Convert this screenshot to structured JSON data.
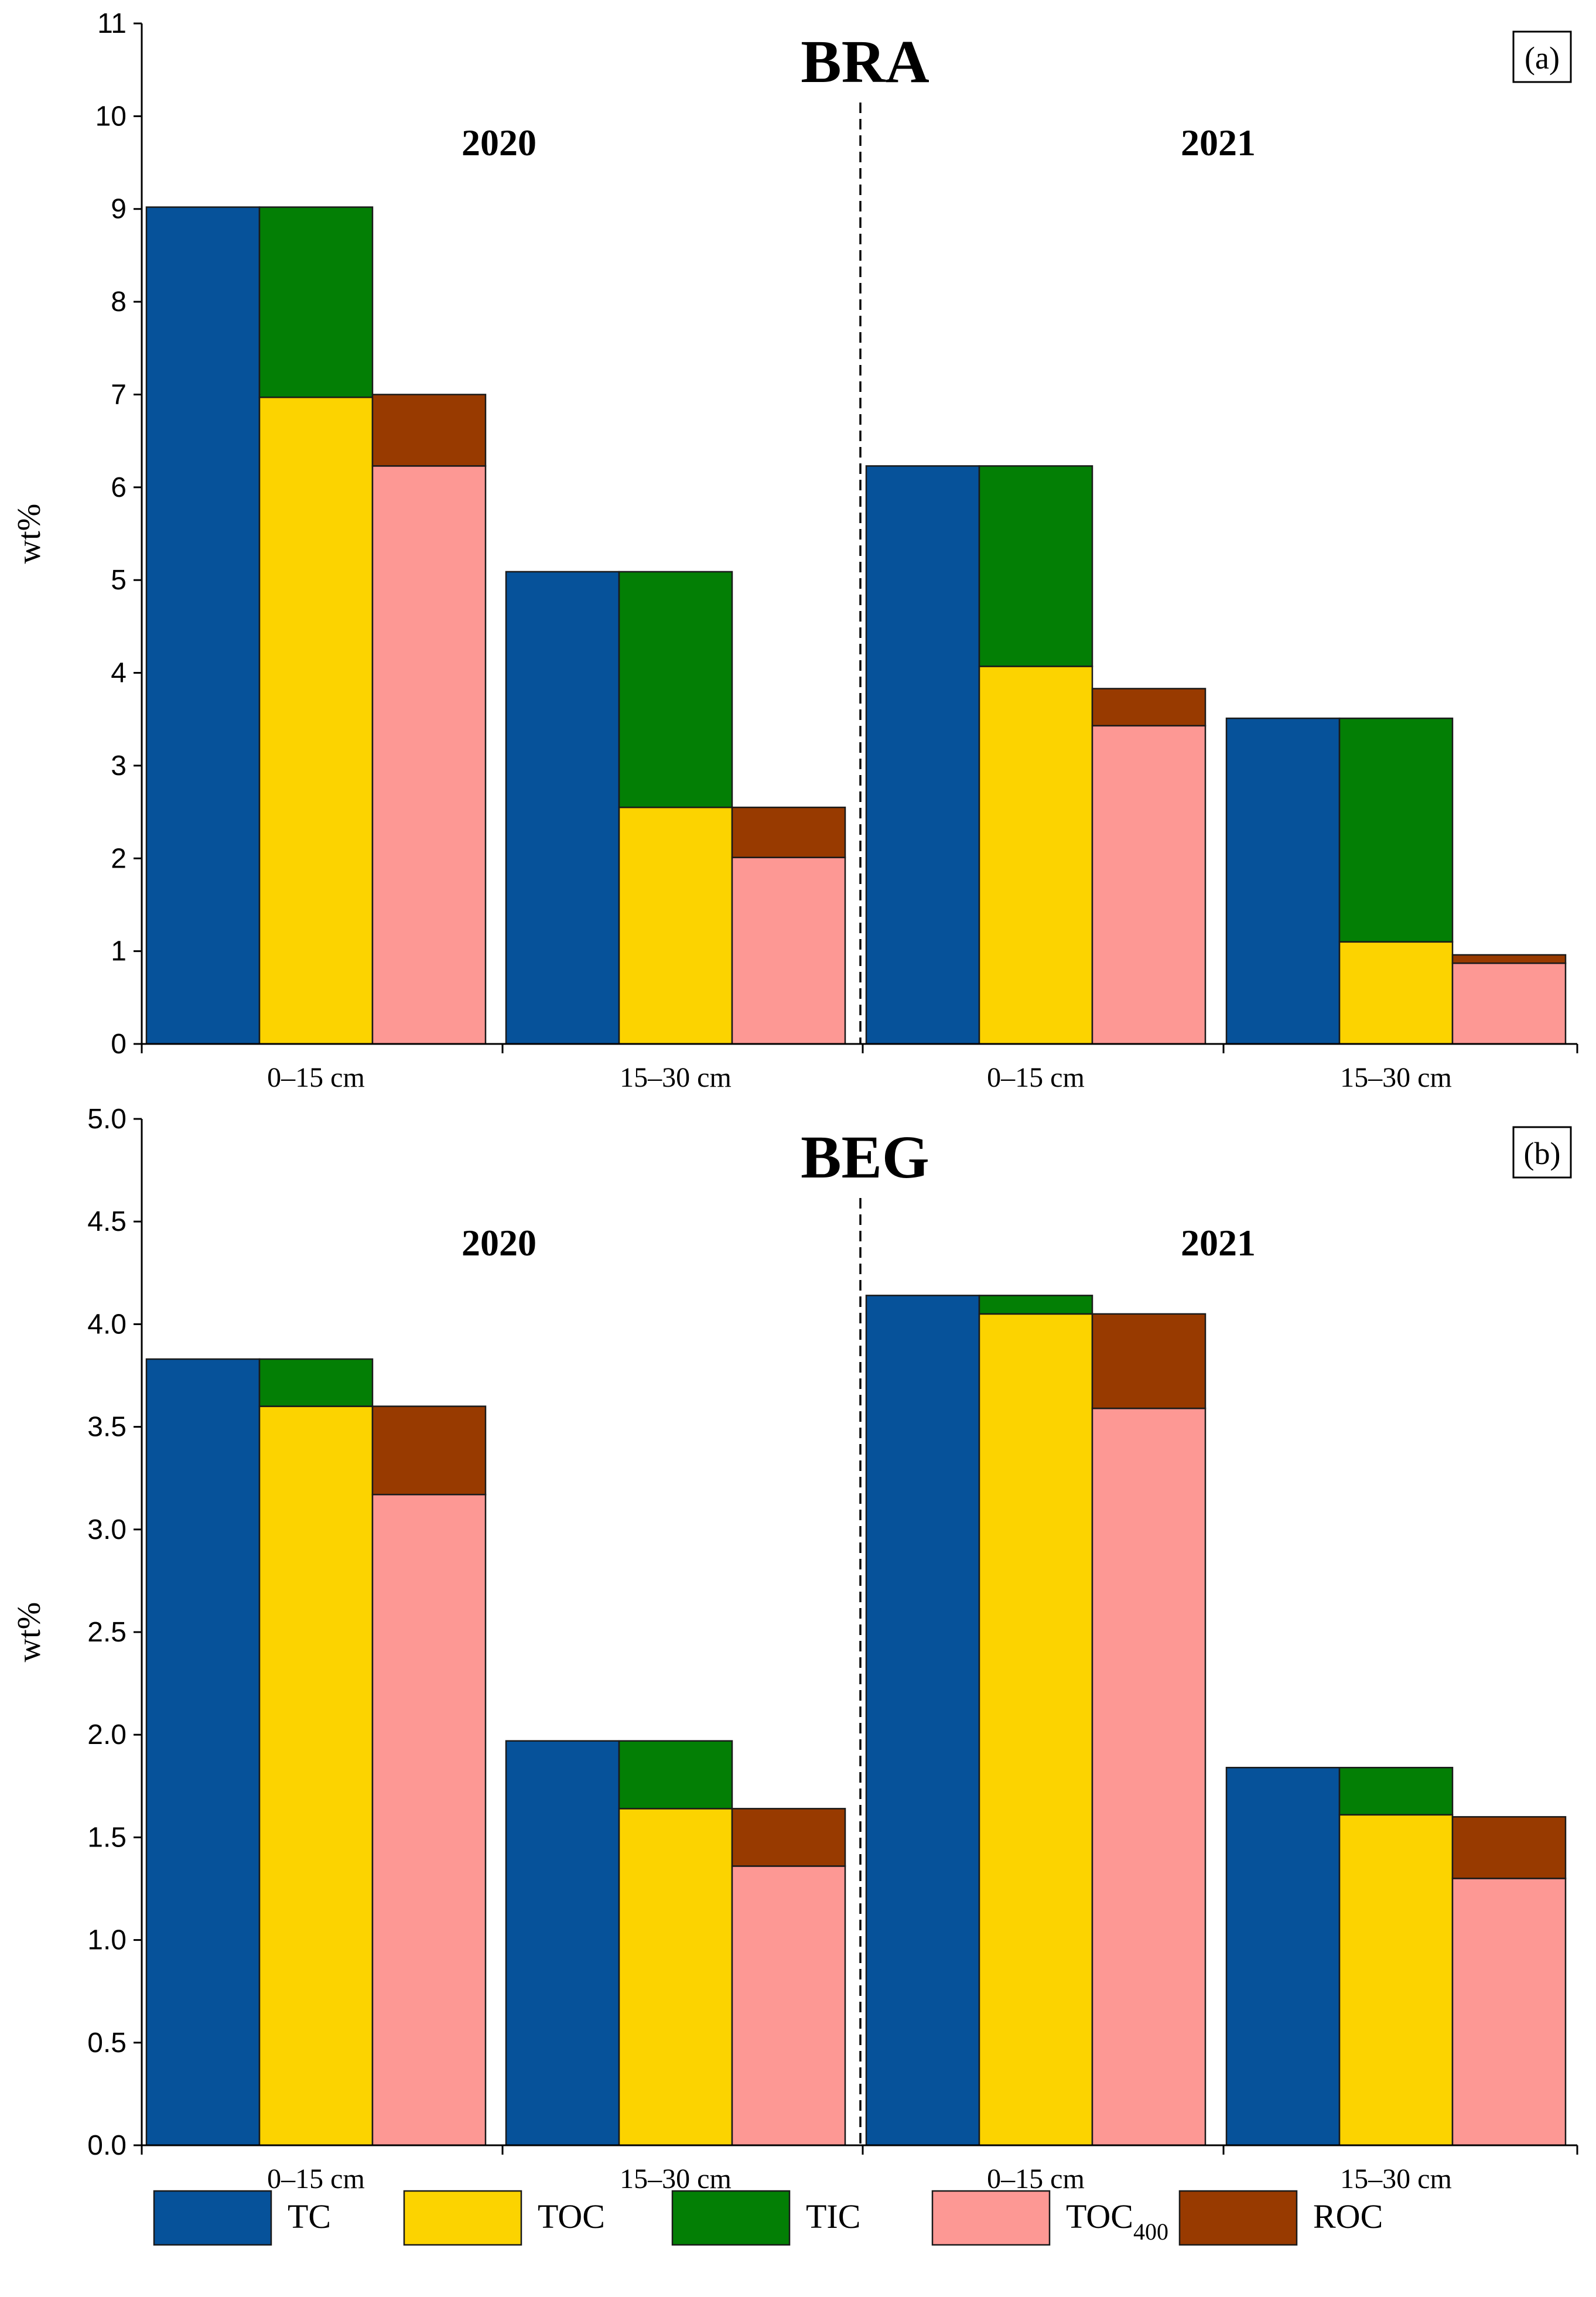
{
  "chart_data": [
    {
      "type": "bar",
      "panel_tag": "(a)",
      "title": "BRA",
      "ylabel": "wt%",
      "ylim": [
        0,
        11
      ],
      "yticks": [
        "0",
        "1",
        "2",
        "3",
        "4",
        "5",
        "6",
        "7",
        "8",
        "9",
        "10",
        "11"
      ],
      "tick_values": [
        0,
        1,
        2,
        3,
        4,
        5,
        6,
        7,
        8,
        9,
        10,
        11
      ],
      "years": [
        "2020",
        "2021"
      ],
      "categories": [
        "0–15 cm",
        "15–30 cm",
        "0–15 cm",
        "15–30 cm"
      ],
      "groups": [
        {
          "year": "2020",
          "depth": "0–15 cm",
          "TC": 9.02,
          "TOC": 6.97,
          "TIC": 2.05,
          "TOC400": 6.23,
          "ROC": 0.77
        },
        {
          "year": "2020",
          "depth": "15–30 cm",
          "TC": 5.09,
          "TOC": 2.55,
          "TIC": 2.54,
          "TOC400": 2.01,
          "ROC": 0.54
        },
        {
          "year": "2021",
          "depth": "0–15 cm",
          "TC": 6.23,
          "TOC": 4.07,
          "TIC": 2.16,
          "TOC400": 3.43,
          "ROC": 0.4
        },
        {
          "year": "2021",
          "depth": "15–30 cm",
          "TC": 3.51,
          "TOC": 1.1,
          "TIC": 2.41,
          "TOC400": 0.87,
          "ROC": 0.09
        }
      ]
    },
    {
      "type": "bar",
      "panel_tag": "(b)",
      "title": "BEG",
      "ylabel": "wt%",
      "ylim": [
        0,
        5
      ],
      "yticks": [
        "0.0",
        "0.5",
        "1.0",
        "1.5",
        "2.0",
        "2.5",
        "3.0",
        "3.5",
        "4.0",
        "4.5",
        "5.0"
      ],
      "tick_values": [
        0,
        0.5,
        1,
        1.5,
        2,
        2.5,
        3,
        3.5,
        4,
        4.5,
        5
      ],
      "years": [
        "2020",
        "2021"
      ],
      "categories": [
        "0–15 cm",
        "15–30 cm",
        "0–15 cm",
        "15–30 cm"
      ],
      "groups": [
        {
          "year": "2020",
          "depth": "0–15 cm",
          "TC": 3.83,
          "TOC": 3.6,
          "TIC": 0.23,
          "TOC400": 3.17,
          "ROC": 0.43
        },
        {
          "year": "2020",
          "depth": "15–30 cm",
          "TC": 1.97,
          "TOC": 1.64,
          "TIC": 0.33,
          "TOC400": 1.36,
          "ROC": 0.28
        },
        {
          "year": "2021",
          "depth": "0–15 cm",
          "TC": 4.14,
          "TOC": 4.05,
          "TIC": 0.09,
          "TOC400": 3.59,
          "ROC": 0.46
        },
        {
          "year": "2021",
          "depth": "15–30 cm",
          "TC": 1.84,
          "TOC": 1.61,
          "TIC": 0.23,
          "TOC400": 1.3,
          "ROC": 0.3
        }
      ]
    }
  ],
  "legend": [
    {
      "key": "TC",
      "label": "TC",
      "color": "#06529a"
    },
    {
      "key": "TOC",
      "label": "TOC",
      "color": "#fcd300"
    },
    {
      "key": "TIC",
      "label": "TIC",
      "color": "#037f05"
    },
    {
      "key": "TOC400",
      "label": "TOC",
      "sub": "400",
      "color": "#fd9894"
    },
    {
      "key": "ROC",
      "label": "ROC",
      "color": "#983a00"
    }
  ]
}
